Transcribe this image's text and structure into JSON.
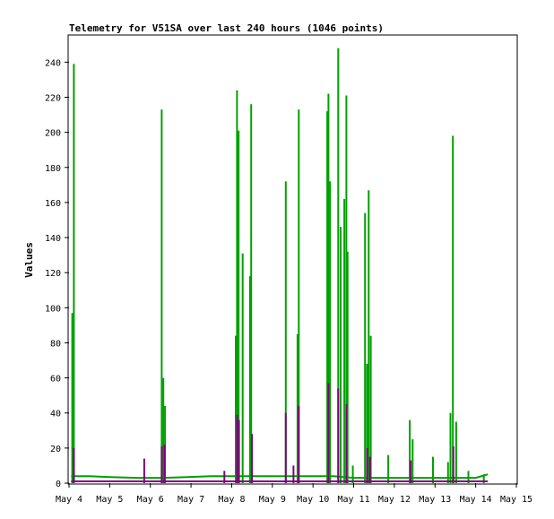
{
  "chart_data": {
    "type": "line",
    "title": "Telemetry for V51SA over last 240 hours (1046 points)",
    "xlabel": "",
    "ylabel": "Values",
    "xlim": [
      "May 4",
      "May 15"
    ],
    "ylim": [
      0,
      255
    ],
    "x_tick_labels": [
      "May 4",
      "May 5",
      "May 6",
      "May 7",
      "May 8",
      "May 9",
      "May 10",
      "May 11",
      "May 12",
      "May 13",
      "May 14",
      "May 15"
    ],
    "y_tick_labels": [
      "0",
      "20",
      "40",
      "60",
      "80",
      "100",
      "120",
      "140",
      "160",
      "180",
      "200",
      "220",
      "240"
    ],
    "grid": false,
    "legend": "none",
    "series": [
      {
        "color": "#00a000",
        "baseline": [
          [
            4.05,
            4
          ],
          [
            4.5,
            4
          ],
          [
            5.0,
            3.5
          ],
          [
            5.7,
            3
          ],
          [
            6.0,
            3
          ],
          [
            6.3,
            3
          ],
          [
            6.9,
            3.5
          ],
          [
            7.5,
            4
          ],
          [
            7.9,
            4
          ],
          [
            8.2,
            4
          ],
          [
            9.0,
            4
          ],
          [
            9.6,
            4
          ],
          [
            10.5,
            4
          ],
          [
            11.0,
            3
          ],
          [
            11.5,
            3
          ],
          [
            12.0,
            3
          ],
          [
            12.5,
            3
          ],
          [
            13.0,
            3
          ],
          [
            13.5,
            3
          ],
          [
            14.0,
            3
          ],
          [
            14.3,
            5
          ]
        ],
        "peaks": [
          [
            4.08,
            97
          ],
          [
            4.12,
            239
          ],
          [
            6.28,
            213
          ],
          [
            6.32,
            60
          ],
          [
            6.36,
            44
          ],
          [
            8.1,
            84
          ],
          [
            8.13,
            224
          ],
          [
            8.17,
            201
          ],
          [
            8.27,
            131
          ],
          [
            8.45,
            118
          ],
          [
            8.48,
            216
          ],
          [
            9.33,
            172
          ],
          [
            9.62,
            85
          ],
          [
            9.65,
            213
          ],
          [
            10.35,
            212
          ],
          [
            10.38,
            222
          ],
          [
            10.42,
            172
          ],
          [
            10.62,
            248
          ],
          [
            10.68,
            146
          ],
          [
            10.77,
            162
          ],
          [
            10.82,
            221
          ],
          [
            10.85,
            132
          ],
          [
            10.98,
            10
          ],
          [
            11.28,
            154
          ],
          [
            11.33,
            68
          ],
          [
            11.37,
            167
          ],
          [
            11.42,
            84
          ],
          [
            11.85,
            16
          ],
          [
            12.38,
            36
          ],
          [
            12.45,
            25
          ],
          [
            12.95,
            15
          ],
          [
            13.32,
            12
          ],
          [
            13.38,
            40
          ],
          [
            13.44,
            198
          ],
          [
            13.52,
            35
          ],
          [
            13.82,
            7
          ],
          [
            14.2,
            5
          ]
        ]
      },
      {
        "color": "#800080",
        "baseline": [
          [
            4.05,
            1
          ],
          [
            14.3,
            1
          ]
        ],
        "peaks": [
          [
            4.12,
            20
          ],
          [
            5.85,
            14
          ],
          [
            6.28,
            21
          ],
          [
            6.35,
            22
          ],
          [
            7.82,
            7
          ],
          [
            8.13,
            39
          ],
          [
            8.18,
            36
          ],
          [
            8.5,
            28
          ],
          [
            9.33,
            40
          ],
          [
            9.52,
            10
          ],
          [
            9.65,
            44
          ],
          [
            10.38,
            57
          ],
          [
            10.62,
            54
          ],
          [
            10.82,
            45
          ],
          [
            11.33,
            20
          ],
          [
            11.4,
            15
          ],
          [
            12.4,
            13
          ],
          [
            13.45,
            21
          ]
        ]
      }
    ]
  }
}
